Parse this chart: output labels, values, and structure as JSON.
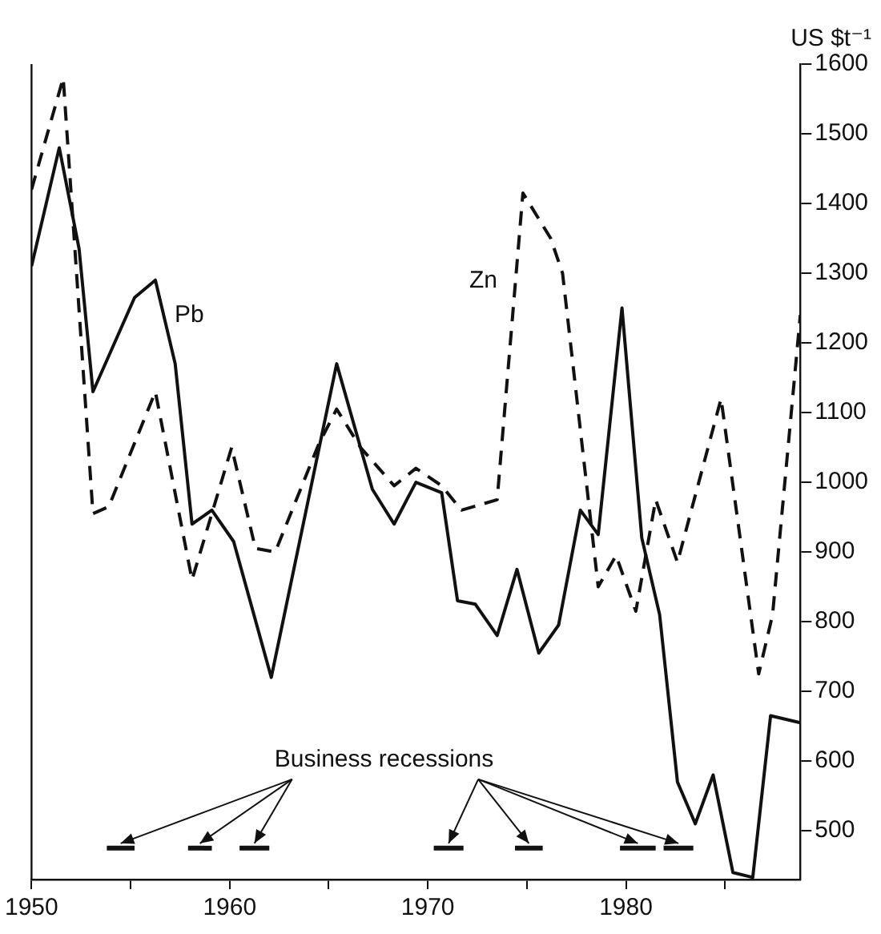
{
  "chart_data": {
    "type": "line",
    "ylabel": "US $t⁻¹",
    "xlim": [
      1950,
      1988.8
    ],
    "xticks": [
      1950,
      {
        "value": 1955,
        "label": null
      },
      1960,
      {
        "value": 1965,
        "label": null
      },
      1970,
      {
        "value": 1975,
        "label": null
      },
      1980,
      {
        "value": 1985,
        "label": null
      }
    ],
    "ylim": [
      430,
      1600
    ],
    "yticks": [
      500,
      600,
      700,
      800,
      900,
      1000,
      1100,
      1200,
      1300,
      1400,
      1500,
      1600
    ],
    "grid": false,
    "legend": false,
    "marker": "none",
    "series": [
      {
        "name": "Pb",
        "color": "#111111",
        "line_style": "solid",
        "x": [
          1950,
          1951.4,
          1952.4,
          1953.1,
          1955.2,
          1956.25,
          1957.25,
          1958.1,
          1959.1,
          1960.2,
          1962.1,
          1965.4,
          1967.2,
          1968.3,
          1969.4,
          1970.7,
          1971.5,
          1972.4,
          1973.5,
          1974.5,
          1975.6,
          1976.6,
          1977.7,
          1978.6,
          1979.8,
          1980.8,
          1981.7,
          1982.6,
          1983.5,
          1984.4,
          1985.4,
          1986.4,
          1987.3,
          1988.8
        ],
        "values": [
          1310,
          1480,
          1335,
          1130,
          1265,
          1290,
          1170,
          940,
          960,
          915,
          720,
          1170,
          990,
          940,
          1000,
          985,
          830,
          825,
          780,
          875,
          755,
          795,
          960,
          925,
          1250,
          920,
          810,
          570,
          510,
          580,
          440,
          433,
          665,
          655
        ]
      },
      {
        "name": "Zn",
        "color": "#111111",
        "line_style": "dashed",
        "x": [
          1950,
          1951.6,
          1953.1,
          1953.9,
          1956.25,
          1958.1,
          1960.1,
          1961.3,
          1962.3,
          1964.5,
          1965.4,
          1966.6,
          1968.3,
          1969.4,
          1970.7,
          1971.7,
          1973.5,
          1974.8,
          1976.2,
          1976.8,
          1978.6,
          1979.5,
          1980.5,
          1981.5,
          1982.6,
          1984.8,
          1986.7,
          1987.4,
          1988.8
        ],
        "values": [
          1420,
          1580,
          955,
          965,
          1130,
          860,
          1050,
          905,
          900,
          1055,
          1105,
          1050,
          995,
          1020,
          995,
          960,
          975,
          1415,
          1350,
          1300,
          850,
          895,
          815,
          975,
          885,
          1120,
          725,
          810,
          1240
        ]
      },
      {
        "name": "Business recessions",
        "color": "#111111",
        "line_style": "solid",
        "x": [
          1953.8,
          1955.2
        ],
        "values": [
          475,
          475
        ]
      },
      {
        "color": "#111111",
        "line_style": "solid",
        "x": [
          1957.9,
          1959.1
        ],
        "values": [
          475,
          475
        ]
      },
      {
        "color": "#111111",
        "line_style": "solid",
        "x": [
          1960.5,
          1962
        ],
        "values": [
          475,
          475
        ]
      },
      {
        "color": "#111111",
        "line_style": "solid",
        "x": [
          1970.3,
          1971.8
        ],
        "values": [
          475,
          475
        ]
      },
      {
        "color": "#111111",
        "line_style": "solid",
        "x": [
          1974.4,
          1975.8
        ],
        "values": [
          475,
          475
        ]
      },
      {
        "color": "#111111",
        "line_style": "solid",
        "x": [
          1979.7,
          1981.5
        ],
        "values": [
          475,
          475
        ]
      },
      {
        "color": "#111111",
        "line_style": "solid",
        "x": [
          1981.9,
          1983.4
        ],
        "values": [
          475,
          475
        ]
      }
    ]
  }
}
